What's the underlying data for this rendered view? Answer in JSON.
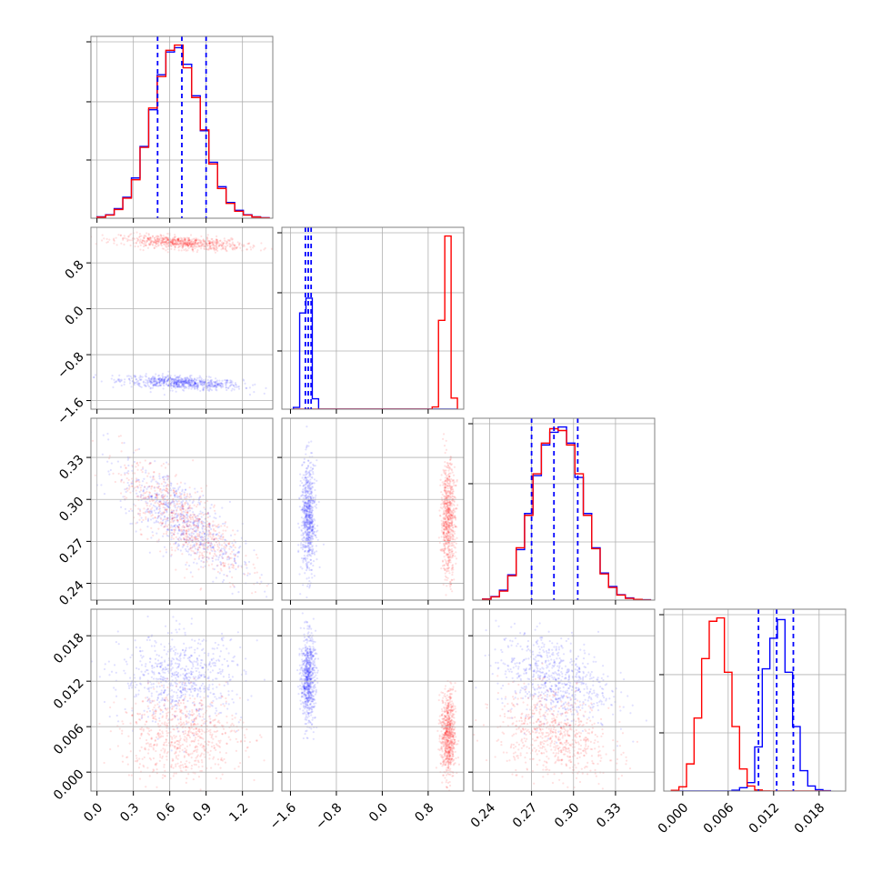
{
  "chart_data": {
    "type": "corner",
    "n_params": 4,
    "colors": {
      "red": "#ff0000",
      "blue": "#0000ff",
      "grid": "#b0b0b0",
      "axis": "#808080"
    },
    "axes": {
      "p0": {
        "range": [
          -0.05,
          1.45
        ],
        "ticks": [
          0.0,
          0.3,
          0.6,
          0.9,
          1.2
        ],
        "labels": [
          "0.0",
          "0.3",
          "0.6",
          "0.9",
          "1.2"
        ]
      },
      "p1": {
        "range": [
          -1.75,
          1.42
        ],
        "ticks": [
          -1.6,
          -0.8,
          0.0,
          0.8
        ],
        "labels": [
          "−1.6",
          "−0.8",
          "0.0",
          "0.8"
        ]
      },
      "p2": {
        "range": [
          0.228,
          0.358
        ],
        "ticks": [
          0.24,
          0.27,
          0.3,
          0.33
        ],
        "labels": [
          "0.24",
          "0.27",
          "0.30",
          "0.33"
        ]
      },
      "p3": {
        "range": [
          -0.0025,
          0.0215
        ],
        "ticks": [
          0.0,
          0.006,
          0.012,
          0.018
        ],
        "labels": [
          "0.000",
          "0.006",
          "0.012",
          "0.018"
        ]
      }
    },
    "series": [
      {
        "name": "",
        "color": "#0000ff",
        "quantiles": {
          "p0": [
            0.5,
            0.7,
            0.9
          ],
          "p1": [
            -1.34,
            -1.29,
            -1.24
          ],
          "p2": [
            0.27,
            0.286,
            0.303
          ],
          "p3": [
            0.01,
            0.0124,
            0.0146
          ]
        },
        "mean": [
          0.7,
          -1.29,
          0.286,
          0.0124
        ],
        "std": [
          0.2,
          0.05,
          0.016,
          0.0023
        ]
      },
      {
        "name": "",
        "color": "#ff0000",
        "mean": [
          0.7,
          1.15,
          0.286,
          0.0049
        ],
        "std": [
          0.2,
          0.05,
          0.016,
          0.0023
        ]
      }
    ],
    "histograms": {
      "p0": {
        "bins": [
          0.0,
          0.071,
          0.142,
          0.213,
          0.284,
          0.355,
          0.426,
          0.497,
          0.568,
          0.639,
          0.71,
          0.781,
          0.852,
          0.923,
          0.994,
          1.065,
          1.136,
          1.207,
          1.278,
          1.349,
          1.42
        ],
        "blue": [
          8,
          20,
          55,
          120,
          230,
          410,
          620,
          820,
          950,
          975,
          880,
          700,
          500,
          320,
          180,
          90,
          45,
          20,
          8,
          3
        ],
        "red": [
          6,
          18,
          50,
          115,
          220,
          405,
          630,
          810,
          960,
          990,
          860,
          690,
          505,
          310,
          170,
          85,
          40,
          18,
          7,
          2
        ]
      },
      "p1": {
        "bins": [
          -1.55,
          -1.44,
          -1.33,
          -1.22,
          -1.11,
          -1.0,
          -0.89,
          -0.78,
          -0.67,
          -0.56,
          -0.45,
          -0.34,
          -0.23,
          -0.12,
          -0.01,
          0.1,
          0.21,
          0.32,
          0.43,
          0.54,
          0.65,
          0.76,
          0.87,
          0.98,
          1.09,
          1.2,
          1.31
        ],
        "blue": [
          12,
          650,
          750,
          70,
          0,
          0,
          0,
          0,
          0,
          0,
          0,
          0,
          0,
          0,
          0,
          0,
          0,
          0,
          0,
          0,
          0,
          0,
          0,
          0,
          0,
          0
        ],
        "red": [
          0,
          0,
          0,
          0,
          0,
          0,
          0,
          0,
          0,
          0,
          0,
          0,
          0,
          0,
          0,
          0,
          0,
          0,
          0,
          0,
          0,
          0,
          15,
          600,
          1170,
          75
        ]
      },
      "p2": {
        "bins": [
          0.235,
          0.241,
          0.247,
          0.253,
          0.259,
          0.265,
          0.271,
          0.277,
          0.283,
          0.289,
          0.295,
          0.301,
          0.307,
          0.313,
          0.319,
          0.325,
          0.331,
          0.337,
          0.343,
          0.349,
          0.355
        ],
        "blue": [
          6,
          20,
          55,
          140,
          280,
          480,
          690,
          860,
          930,
          960,
          870,
          680,
          480,
          290,
          150,
          75,
          30,
          12,
          4,
          2
        ],
        "red": [
          5,
          18,
          50,
          135,
          290,
          470,
          700,
          870,
          950,
          940,
          860,
          700,
          470,
          285,
          145,
          70,
          28,
          10,
          4,
          1
        ]
      },
      "p3": {
        "bins": [
          -0.0015,
          -0.0005,
          0.0005,
          0.0015,
          0.0025,
          0.0035,
          0.0045,
          0.0055,
          0.0065,
          0.0075,
          0.0085,
          0.0095,
          0.0105,
          0.0115,
          0.0125,
          0.0135,
          0.0145,
          0.0155,
          0.0165,
          0.0175,
          0.0185,
          0.0195
        ],
        "blue": [
          0,
          0,
          0,
          0,
          0,
          0,
          0,
          0,
          5,
          20,
          50,
          260,
          720,
          900,
          1010,
          700,
          380,
          120,
          30,
          8,
          2
        ],
        "red": [
          4,
          25,
          160,
          430,
          780,
          1000,
          1020,
          700,
          380,
          130,
          30,
          6,
          1,
          0,
          0,
          0,
          0,
          0,
          0,
          0,
          0
        ]
      }
    },
    "grid": true,
    "legend": "none",
    "title": "",
    "xlabel": "",
    "ylabel": ""
  }
}
